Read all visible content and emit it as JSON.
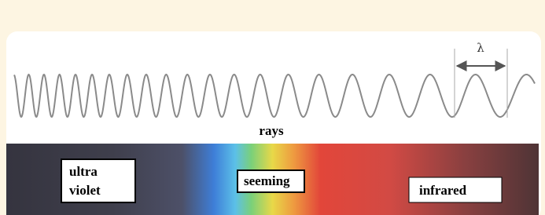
{
  "wavelength_symbol": "λ",
  "wave_label": "rays",
  "spectrum_labels": [
    {
      "lines": [
        "ultra",
        "violet"
      ]
    },
    {
      "lines": [
        "seeming"
      ]
    },
    {
      "lines": [
        "infrared"
      ]
    }
  ]
}
